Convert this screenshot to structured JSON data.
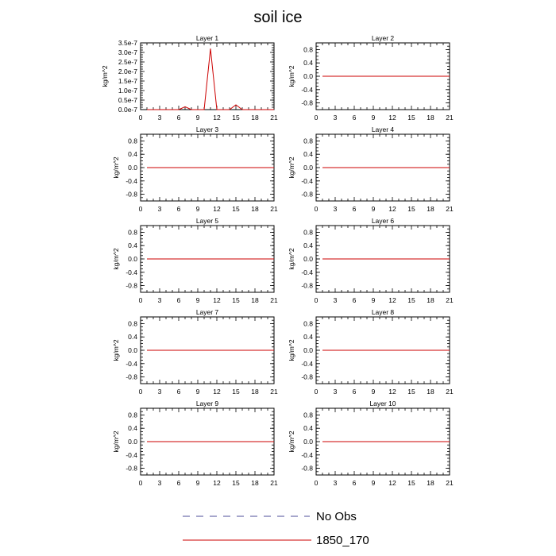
{
  "chart_data": {
    "type": "line",
    "title": "soil ice",
    "x": [
      1,
      2,
      3,
      4,
      5,
      6,
      7,
      8,
      9,
      10,
      11,
      12,
      13,
      14,
      15,
      16,
      17,
      18,
      19,
      20,
      21
    ],
    "xlim": [
      0,
      21
    ],
    "xticks": [
      "0",
      "3",
      "6",
      "9",
      "12",
      "15",
      "18",
      "21"
    ],
    "colors": {
      "no_obs": "#4c4c9a",
      "run": "#cc0000"
    },
    "legend": [
      {
        "name": "No Obs",
        "style": "dashed",
        "color": "#4c4c9a"
      },
      {
        "name": "1850_170",
        "style": "solid",
        "color": "#cc0000"
      }
    ],
    "panels": [
      {
        "title": "Layer 1",
        "ylabel": "kg/m^2",
        "ylim": [
          0,
          3.5e-07
        ],
        "yticks": [
          "3.5e-7",
          "3.0e-7",
          "2.5e-7",
          "2.0e-7",
          "1.5e-7",
          "1.0e-7",
          "0.5e-7",
          "0.0e-7"
        ],
        "ytick_values": [
          3.5e-07,
          3e-07,
          2.5e-07,
          2e-07,
          1.5e-07,
          1e-07,
          5e-08,
          0.0
        ],
        "series": [
          {
            "name": "1850_170",
            "values": [
              0,
              0,
              0,
              0,
              0,
              0,
              1.5e-08,
              0,
              0,
              0,
              3.2e-07,
              0,
              0,
              0,
              2.5e-08,
              0,
              0,
              0,
              0,
              0,
              0
            ]
          }
        ]
      },
      {
        "title": "Layer 2",
        "ylabel": "kg/m^2",
        "ylim": [
          -1,
          1
        ],
        "yticks": [
          "0.8",
          "0.4",
          "0.0",
          "-0.4",
          "-0.8"
        ],
        "ytick_values": [
          0.8,
          0.4,
          0,
          -0.4,
          -0.8
        ],
        "series": [
          {
            "name": "1850_170",
            "values": [
              0,
              0,
              0,
              0,
              0,
              0,
              0,
              0,
              0,
              0,
              0,
              0,
              0,
              0,
              0,
              0,
              0,
              0,
              0,
              0,
              0
            ]
          }
        ]
      },
      {
        "title": "Layer 3",
        "ylabel": "kg/m^2",
        "ylim": [
          -1,
          1
        ],
        "yticks": [
          "0.8",
          "0.4",
          "0.0",
          "-0.4",
          "-0.8"
        ],
        "ytick_values": [
          0.8,
          0.4,
          0,
          -0.4,
          -0.8
        ],
        "series": [
          {
            "name": "1850_170",
            "values": [
              0,
              0,
              0,
              0,
              0,
              0,
              0,
              0,
              0,
              0,
              0,
              0,
              0,
              0,
              0,
              0,
              0,
              0,
              0,
              0,
              0
            ]
          }
        ]
      },
      {
        "title": "Layer 4",
        "ylabel": "kg/m^2",
        "ylim": [
          -1,
          1
        ],
        "yticks": [
          "0.8",
          "0.4",
          "0.0",
          "-0.4",
          "-0.8"
        ],
        "ytick_values": [
          0.8,
          0.4,
          0,
          -0.4,
          -0.8
        ],
        "series": [
          {
            "name": "1850_170",
            "values": [
              0,
              0,
              0,
              0,
              0,
              0,
              0,
              0,
              0,
              0,
              0,
              0,
              0,
              0,
              0,
              0,
              0,
              0,
              0,
              0,
              0
            ]
          }
        ]
      },
      {
        "title": "Layer 5",
        "ylabel": "kg/m^2",
        "ylim": [
          -1,
          1
        ],
        "yticks": [
          "0.8",
          "0.4",
          "0.0",
          "-0.4",
          "-0.8"
        ],
        "ytick_values": [
          0.8,
          0.4,
          0,
          -0.4,
          -0.8
        ],
        "series": [
          {
            "name": "1850_170",
            "values": [
              0,
              0,
              0,
              0,
              0,
              0,
              0,
              0,
              0,
              0,
              0,
              0,
              0,
              0,
              0,
              0,
              0,
              0,
              0,
              0,
              0
            ]
          }
        ]
      },
      {
        "title": "Layer 6",
        "ylabel": "kg/m^2",
        "ylim": [
          -1,
          1
        ],
        "yticks": [
          "0.8",
          "0.4",
          "0.0",
          "-0.4",
          "-0.8"
        ],
        "ytick_values": [
          0.8,
          0.4,
          0,
          -0.4,
          -0.8
        ],
        "series": [
          {
            "name": "1850_170",
            "values": [
              0,
              0,
              0,
              0,
              0,
              0,
              0,
              0,
              0,
              0,
              0,
              0,
              0,
              0,
              0,
              0,
              0,
              0,
              0,
              0,
              0
            ]
          }
        ]
      },
      {
        "title": "Layer 7",
        "ylabel": "kg/m^2",
        "ylim": [
          -1,
          1
        ],
        "yticks": [
          "0.8",
          "0.4",
          "0.0",
          "-0.4",
          "-0.8"
        ],
        "ytick_values": [
          0.8,
          0.4,
          0,
          -0.4,
          -0.8
        ],
        "series": [
          {
            "name": "1850_170",
            "values": [
              0,
              0,
              0,
              0,
              0,
              0,
              0,
              0,
              0,
              0,
              0,
              0,
              0,
              0,
              0,
              0,
              0,
              0,
              0,
              0,
              0
            ]
          }
        ]
      },
      {
        "title": "Layer 8",
        "ylabel": "kg/m^2",
        "ylim": [
          -1,
          1
        ],
        "yticks": [
          "0.8",
          "0.4",
          "0.0",
          "-0.4",
          "-0.8"
        ],
        "ytick_values": [
          0.8,
          0.4,
          0,
          -0.4,
          -0.8
        ],
        "series": [
          {
            "name": "1850_170",
            "values": [
              0,
              0,
              0,
              0,
              0,
              0,
              0,
              0,
              0,
              0,
              0,
              0,
              0,
              0,
              0,
              0,
              0,
              0,
              0,
              0,
              0
            ]
          }
        ]
      },
      {
        "title": "Layer 9",
        "ylabel": "kg/m^2",
        "ylim": [
          -1,
          1
        ],
        "yticks": [
          "0.8",
          "0.4",
          "0.0",
          "-0.4",
          "-0.8"
        ],
        "ytick_values": [
          0.8,
          0.4,
          0,
          -0.4,
          -0.8
        ],
        "series": [
          {
            "name": "1850_170",
            "values": [
              0,
              0,
              0,
              0,
              0,
              0,
              0,
              0,
              0,
              0,
              0,
              0,
              0,
              0,
              0,
              0,
              0,
              0,
              0,
              0,
              0
            ]
          }
        ]
      },
      {
        "title": "Layer 10",
        "ylabel": "kg/m^2",
        "ylim": [
          -1,
          1
        ],
        "yticks": [
          "0.8",
          "0.4",
          "0.0",
          "-0.4",
          "-0.8"
        ],
        "ytick_values": [
          0.8,
          0.4,
          0,
          -0.4,
          -0.8
        ],
        "series": [
          {
            "name": "1850_170",
            "values": [
              0,
              0,
              0,
              0,
              0,
              0,
              0,
              0,
              0,
              0,
              0,
              0,
              0,
              0,
              0,
              0,
              0,
              0,
              0,
              0,
              0
            ]
          }
        ]
      }
    ]
  }
}
